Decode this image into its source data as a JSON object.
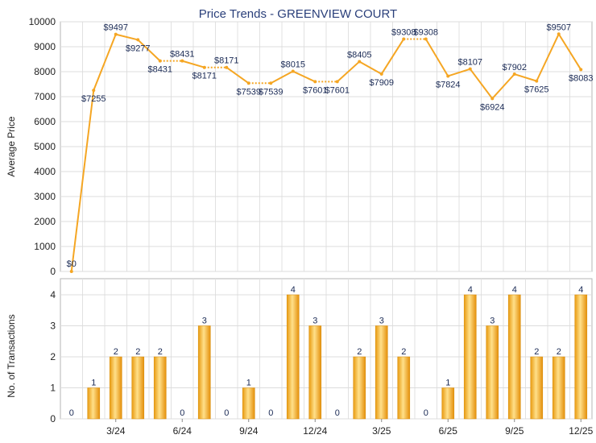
{
  "chart_data": [
    {
      "type": "line",
      "title": "Price Trends - GREENVIEW COURT",
      "ylabel": "Average Price",
      "ylim": [
        0,
        10000
      ],
      "yticks": [
        0,
        1000,
        2000,
        3000,
        4000,
        5000,
        6000,
        7000,
        8000,
        9000,
        10000
      ],
      "color": "#f5a623",
      "series": [
        {
          "values": [
            0,
            7255,
            9497,
            9277,
            8431,
            8431,
            8171,
            8171,
            7539,
            7539,
            8015,
            7601,
            7601,
            8405,
            7909,
            9308,
            9308,
            7824,
            8107,
            6924,
            7902,
            7625,
            9507,
            8083
          ],
          "labels": [
            "$0",
            "$7255",
            "$9497",
            "$9277",
            "$8431",
            "$8431",
            "$8171",
            "$8171",
            "$7539",
            "$7539",
            "$8015",
            "$7601",
            "$7601",
            "$8405",
            "$7909",
            "$9308",
            "$9308",
            "$7824",
            "$8107",
            "$6924",
            "$7902",
            "$7625",
            "$9507",
            "$8083"
          ],
          "dotted_segments": [
            [
              4,
              5
            ],
            [
              6,
              7
            ],
            [
              8,
              9
            ],
            [
              11,
              12
            ],
            [
              15,
              16
            ]
          ]
        }
      ]
    },
    {
      "type": "bar",
      "ylabel": "No. of Transactions",
      "ylim": [
        0,
        4
      ],
      "yticks": [
        0,
        1,
        2,
        3,
        4
      ],
      "color": "#f5a623",
      "values": [
        0,
        1,
        2,
        2,
        2,
        0,
        3,
        0,
        1,
        0,
        4,
        3,
        0,
        2,
        3,
        2,
        0,
        1,
        4,
        3,
        4,
        2,
        2,
        4
      ],
      "x_tick_labels": [
        {
          "index": 2,
          "label": "3/24"
        },
        {
          "index": 5,
          "label": "6/24"
        },
        {
          "index": 8,
          "label": "9/24"
        },
        {
          "index": 11,
          "label": "12/24"
        },
        {
          "index": 14,
          "label": "3/25"
        },
        {
          "index": 17,
          "label": "6/25"
        },
        {
          "index": 20,
          "label": "9/25"
        },
        {
          "index": 23,
          "label": "12/25"
        }
      ]
    }
  ]
}
